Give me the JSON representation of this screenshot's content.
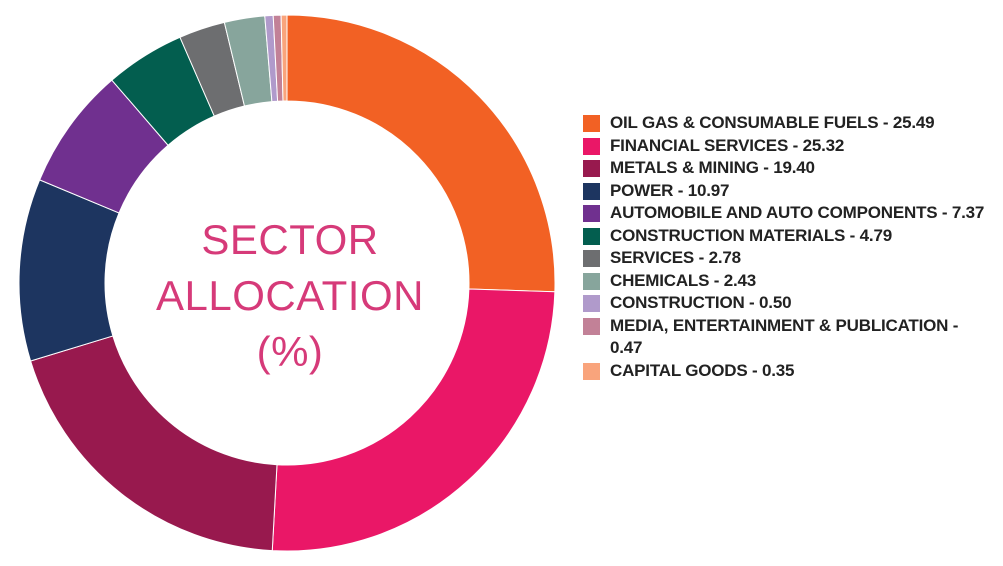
{
  "chart_data": {
    "type": "pie",
    "title_lines": [
      "SECTOR",
      "ALLOCATION",
      "(%)"
    ],
    "slices": [
      {
        "label": "OIL GAS & CONSUMABLE FUELS",
        "value": 25.49,
        "legend_text": "OIL GAS & CONSUMABLE FUELS - 25.49",
        "color": "#f26124"
      },
      {
        "label": "FINANCIAL SERVICES",
        "value": 25.32,
        "legend_text": "FINANCIAL SERVICES - 25.32",
        "color": "#ea1767"
      },
      {
        "label": "METALS & MINING",
        "value": 19.4,
        "legend_text": "METALS & MINING - 19.40",
        "color": "#98194e"
      },
      {
        "label": "POWER",
        "value": 10.97,
        "legend_text": "POWER - 10.97",
        "color": "#1d3560"
      },
      {
        "label": "AUTOMOBILE AND AUTO COMPONENTS",
        "value": 7.37,
        "legend_text": "AUTOMOBILE AND AUTO COMPONENTS - 7.37",
        "color": "#70308f"
      },
      {
        "label": "CONSTRUCTION MATERIALS",
        "value": 4.79,
        "legend_text": "CONSTRUCTION MATERIALS - 4.79",
        "color": "#035e4f"
      },
      {
        "label": "SERVICES",
        "value": 2.78,
        "legend_text": "SERVICES - 2.78",
        "color": "#6d6e70"
      },
      {
        "label": "CHEMICALS",
        "value": 2.43,
        "legend_text": "CHEMICALS - 2.43",
        "color": "#87a59c"
      },
      {
        "label": "CONSTRUCTION",
        "value": 0.5,
        "legend_text": "CONSTRUCTION - 0.50",
        "color": "#b09acb"
      },
      {
        "label": "MEDIA, ENTERTAINMENT & PUBLICATION",
        "value": 0.47,
        "legend_text": "MEDIA, ENTERTAINMENT & PUBLICATION - 0.47",
        "color": "#c28197"
      },
      {
        "label": "CAPITAL GOODS",
        "value": 0.35,
        "legend_text": "CAPITAL GOODS - 0.35",
        "color": "#f9a47c"
      }
    ],
    "legend_placement": "right",
    "style": "donut"
  }
}
